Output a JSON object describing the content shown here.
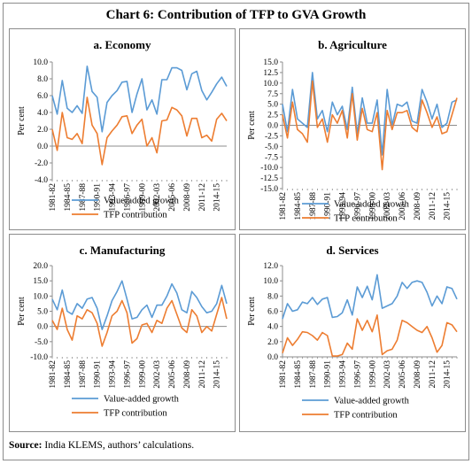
{
  "title": "Chart 6: Contribution of TFP to GVA Growth",
  "source_label": "Source:",
  "source_text": "India KLEMS, authors’ calculations.",
  "colors": {
    "value_added": "#5b9bd5",
    "tfp": "#ed7d31",
    "axis": "#8c8c8c"
  },
  "chart_data": [
    {
      "type": "line",
      "title": "a. Economy",
      "ylabel": "Per cent",
      "ylim": [
        -4.0,
        10.0
      ],
      "yticks": [
        -4.0,
        -2.0,
        0.0,
        2.0,
        4.0,
        6.0,
        8.0,
        10.0
      ],
      "ytick_decimals": 1,
      "x": [
        "1981-82",
        "1982-83",
        "1983-84",
        "1984-85",
        "1985-86",
        "1986-87",
        "1987-88",
        "1988-89",
        "1989-90",
        "1990-91",
        "1991-92",
        "1992-93",
        "1993-94",
        "1994-95",
        "1995-96",
        "1996-97",
        "1997-98",
        "1998-99",
        "1999-00",
        "2000-01",
        "2001-02",
        "2002-03",
        "2003-04",
        "2004-05",
        "2005-06",
        "2006-07",
        "2007-08",
        "2008-09",
        "2009-10",
        "2010-11",
        "2011-12",
        "2012-13",
        "2013-14",
        "2014-15",
        "2015-16",
        "2016-17"
      ],
      "xtick_labels": [
        "1981-82",
        "1984-85",
        "1987-88",
        "1990-91",
        "1993-94",
        "1996-97",
        "1999-00",
        "2002-03",
        "2005-06",
        "2008-09",
        "2011-12",
        "2014-15"
      ],
      "legend_position": "bottom",
      "series": [
        {
          "name": "Value-added growth",
          "color": "#5b9bd5",
          "values": [
            6.0,
            3.8,
            7.8,
            4.5,
            4.0,
            4.8,
            3.9,
            9.5,
            6.5,
            5.8,
            1.7,
            5.2,
            6.0,
            6.6,
            7.6,
            7.7,
            4.0,
            6.2,
            8.0,
            4.3,
            5.5,
            3.8,
            7.9,
            7.9,
            9.3,
            9.3,
            9.0,
            6.7,
            8.6,
            8.9,
            6.6,
            5.5,
            6.4,
            7.4,
            8.2,
            7.1
          ]
        },
        {
          "name": "TFP contribution",
          "color": "#ed7d31",
          "values": [
            2.0,
            -0.5,
            4.0,
            1.0,
            0.8,
            1.5,
            0.3,
            5.8,
            2.5,
            1.5,
            -2.2,
            1.0,
            1.8,
            2.5,
            3.5,
            3.6,
            1.5,
            2.5,
            3.2,
            0.0,
            1.0,
            -0.8,
            3.0,
            3.1,
            4.6,
            4.3,
            3.6,
            1.2,
            3.3,
            3.3,
            1.0,
            1.3,
            0.6,
            3.2,
            3.9,
            3.0
          ]
        }
      ]
    },
    {
      "type": "line",
      "title": "b. Agriculture",
      "ylabel": "Per cent",
      "ylim": [
        -15.0,
        15.0
      ],
      "yticks": [
        -15.0,
        -12.5,
        -10.0,
        -7.5,
        -5.0,
        -2.5,
        0.0,
        2.5,
        5.0,
        7.5,
        10.0,
        12.5,
        15.0
      ],
      "ytick_decimals": 1,
      "x": [
        "1981-82",
        "1982-83",
        "1983-84",
        "1984-85",
        "1985-86",
        "1986-87",
        "1987-88",
        "1988-89",
        "1989-90",
        "1990-91",
        "1991-92",
        "1992-93",
        "1993-94",
        "1994-95",
        "1995-96",
        "1996-97",
        "1997-98",
        "1998-99",
        "1999-00",
        "2000-01",
        "2001-02",
        "2002-03",
        "2003-04",
        "2004-05",
        "2005-06",
        "2006-07",
        "2007-08",
        "2008-09",
        "2009-10",
        "2010-11",
        "2011-12",
        "2012-13",
        "2013-14",
        "2014-15",
        "2015-16",
        "2016-17"
      ],
      "xtick_labels": [
        "1981-82",
        "1984-85",
        "1987-88",
        "1990-91",
        "1993-94",
        "1996-97",
        "1999-00",
        "2002-03",
        "2005-06",
        "2008-09",
        "2011-12",
        "2014-15"
      ],
      "legend_position": "bottom",
      "series": [
        {
          "name": "Value-added growth",
          "color": "#5b9bd5",
          "values": [
            5.0,
            -1.5,
            8.5,
            1.5,
            0.5,
            -0.5,
            12.5,
            1.5,
            3.5,
            -1.5,
            5.5,
            2.5,
            4.5,
            -1.0,
            9.0,
            -2.0,
            6.5,
            0.5,
            0.5,
            6.0,
            -7.0,
            8.5,
            0.0,
            5.0,
            4.5,
            5.5,
            1.0,
            0.5,
            8.5,
            5.5,
            1.5,
            5.0,
            -0.5,
            0.5,
            5.5,
            6.0
          ]
        },
        {
          "name": "TFP contribution",
          "color": "#ed7d31",
          "values": [
            2.5,
            -3.0,
            5.5,
            -1.0,
            -2.0,
            -4.0,
            10.5,
            -0.5,
            1.5,
            -4.0,
            2.5,
            0.5,
            3.5,
            -3.0,
            7.5,
            -3.5,
            4.0,
            -1.0,
            -1.5,
            3.0,
            -10.5,
            3.5,
            -1.0,
            3.0,
            3.0,
            3.5,
            -0.5,
            -1.5,
            6.0,
            3.0,
            -0.5,
            2.0,
            -2.0,
            -1.5,
            2.5,
            6.5
          ]
        }
      ]
    },
    {
      "type": "line",
      "title": "c. Manufacturing",
      "ylabel": "Per cent",
      "ylim": [
        -10.0,
        20.0
      ],
      "yticks": [
        -10.0,
        -5.0,
        0.0,
        5.0,
        10.0,
        15.0,
        20.0
      ],
      "ytick_decimals": 1,
      "x": [
        "1981-82",
        "1982-83",
        "1983-84",
        "1984-85",
        "1985-86",
        "1986-87",
        "1987-88",
        "1988-89",
        "1989-90",
        "1990-91",
        "1991-92",
        "1992-93",
        "1993-94",
        "1994-95",
        "1995-96",
        "1996-97",
        "1997-98",
        "1998-99",
        "1999-00",
        "2000-01",
        "2001-02",
        "2002-03",
        "2003-04",
        "2004-05",
        "2005-06",
        "2006-07",
        "2007-08",
        "2008-09",
        "2009-10",
        "2010-11",
        "2011-12",
        "2012-13",
        "2013-14",
        "2014-15",
        "2015-16",
        "2016-17"
      ],
      "xtick_labels": [
        "1981-82",
        "1984-85",
        "1987-88",
        "1990-91",
        "1993-94",
        "1996-97",
        "1999-00",
        "2002-03",
        "2005-06",
        "2008-09",
        "2011-12",
        "2014-15"
      ],
      "legend_position": "bottom",
      "series": [
        {
          "name": "Value-added growth",
          "color": "#5b9bd5",
          "values": [
            9.0,
            5.5,
            12.0,
            5.0,
            4.0,
            7.5,
            6.0,
            9.0,
            9.5,
            6.0,
            -1.0,
            3.5,
            8.5,
            11.5,
            15.0,
            9.0,
            2.5,
            3.0,
            5.5,
            7.0,
            3.0,
            7.0,
            7.0,
            10.0,
            14.0,
            11.0,
            5.5,
            4.5,
            11.5,
            9.5,
            6.5,
            4.5,
            5.0,
            7.5,
            13.5,
            7.5
          ]
        },
        {
          "name": "TFP contribution",
          "color": "#ed7d31",
          "values": [
            2.0,
            -1.0,
            6.0,
            -1.0,
            -4.5,
            3.5,
            2.5,
            5.5,
            4.5,
            1.0,
            -6.5,
            -2.0,
            3.5,
            5.0,
            8.5,
            4.5,
            -5.5,
            -4.0,
            0.5,
            1.0,
            -2.0,
            2.0,
            1.0,
            6.0,
            8.5,
            4.0,
            -0.5,
            -2.0,
            5.5,
            3.5,
            -2.0,
            0.0,
            -1.5,
            4.0,
            9.5,
            2.5
          ]
        }
      ]
    },
    {
      "type": "line",
      "title": "d. Services",
      "ylabel": "Per cent",
      "ylim": [
        0.0,
        12.0
      ],
      "yticks": [
        0.0,
        2.0,
        4.0,
        6.0,
        8.0,
        10.0,
        12.0
      ],
      "ytick_decimals": 1,
      "x": [
        "1981-82",
        "1982-83",
        "1983-84",
        "1984-85",
        "1985-86",
        "1986-87",
        "1987-88",
        "1988-89",
        "1989-90",
        "1990-91",
        "1991-92",
        "1992-93",
        "1993-94",
        "1994-95",
        "1995-96",
        "1996-97",
        "1997-98",
        "1998-99",
        "1999-00",
        "2000-01",
        "2001-02",
        "2002-03",
        "2003-04",
        "2004-05",
        "2005-06",
        "2006-07",
        "2007-08",
        "2008-09",
        "2009-10",
        "2010-11",
        "2011-12",
        "2012-13",
        "2013-14",
        "2014-15",
        "2015-16",
        "2016-17"
      ],
      "xtick_labels": [
        "1981-82",
        "1984-85",
        "1987-88",
        "1990-91",
        "1993-94",
        "1996-97",
        "1999-00",
        "2002-03",
        "2005-06",
        "2008-09",
        "2011-12",
        "2014-15"
      ],
      "legend_position": "bottom",
      "series": [
        {
          "name": "Value-added growth",
          "color": "#5b9bd5",
          "values": [
            5.0,
            7.0,
            6.0,
            6.2,
            7.2,
            7.0,
            7.8,
            6.9,
            7.6,
            7.8,
            5.2,
            5.3,
            5.8,
            7.5,
            5.5,
            9.2,
            7.8,
            9.3,
            7.5,
            10.8,
            6.4,
            6.7,
            7.0,
            8.0,
            9.8,
            9.0,
            9.8,
            10.0,
            9.8,
            8.5,
            6.7,
            8.0,
            7.0,
            9.2,
            9.0,
            7.6
          ]
        },
        {
          "name": "TFP contribution",
          "color": "#ed7d31",
          "values": [
            0.5,
            2.5,
            1.5,
            2.3,
            3.3,
            3.2,
            2.8,
            2.2,
            3.2,
            2.8,
            0.1,
            0.1,
            0.3,
            1.8,
            1.0,
            5.0,
            3.5,
            4.8,
            3.3,
            5.5,
            0.3,
            0.8,
            1.0,
            2.2,
            4.8,
            4.5,
            4.0,
            3.5,
            3.2,
            4.0,
            2.5,
            0.6,
            1.5,
            4.5,
            4.2,
            3.3
          ]
        }
      ]
    }
  ]
}
